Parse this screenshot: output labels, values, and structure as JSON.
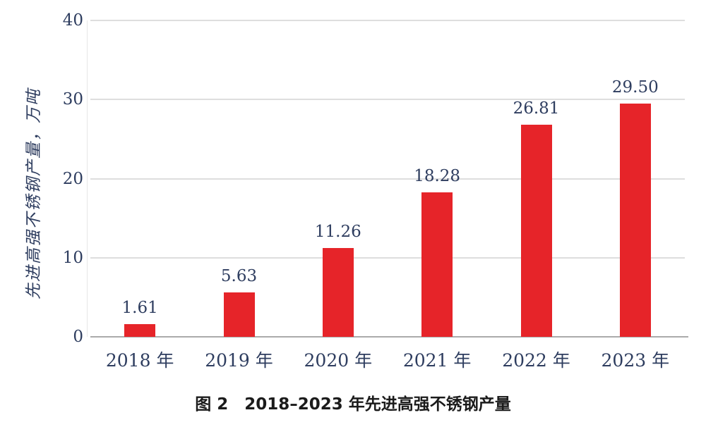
{
  "figure": {
    "caption": "图 2　2018–2023 年先进高强不锈钢产量"
  },
  "chart_data": {
    "type": "bar",
    "categories": [
      "2018 年",
      "2019 年",
      "2020 年",
      "2021 年",
      "2022 年",
      "2023 年"
    ],
    "values": [
      1.61,
      5.63,
      11.26,
      18.28,
      26.81,
      29.5
    ],
    "data_labels": [
      "1.61",
      "5.63",
      "11.26",
      "18.28",
      "26.81",
      "29.50"
    ],
    "title": "",
    "xlabel": "",
    "ylabel": "先进高强不锈钢产量，万吨",
    "ylim": [
      0,
      40
    ],
    "yticks": [
      0,
      10,
      20,
      30,
      40
    ],
    "grid": true,
    "legend": "none",
    "colors": {
      "bar": "#e62429",
      "text": "#2e3d5f",
      "grid": "#dedede",
      "axis": "#ababab",
      "vaxis": "#e7e7e7"
    }
  }
}
